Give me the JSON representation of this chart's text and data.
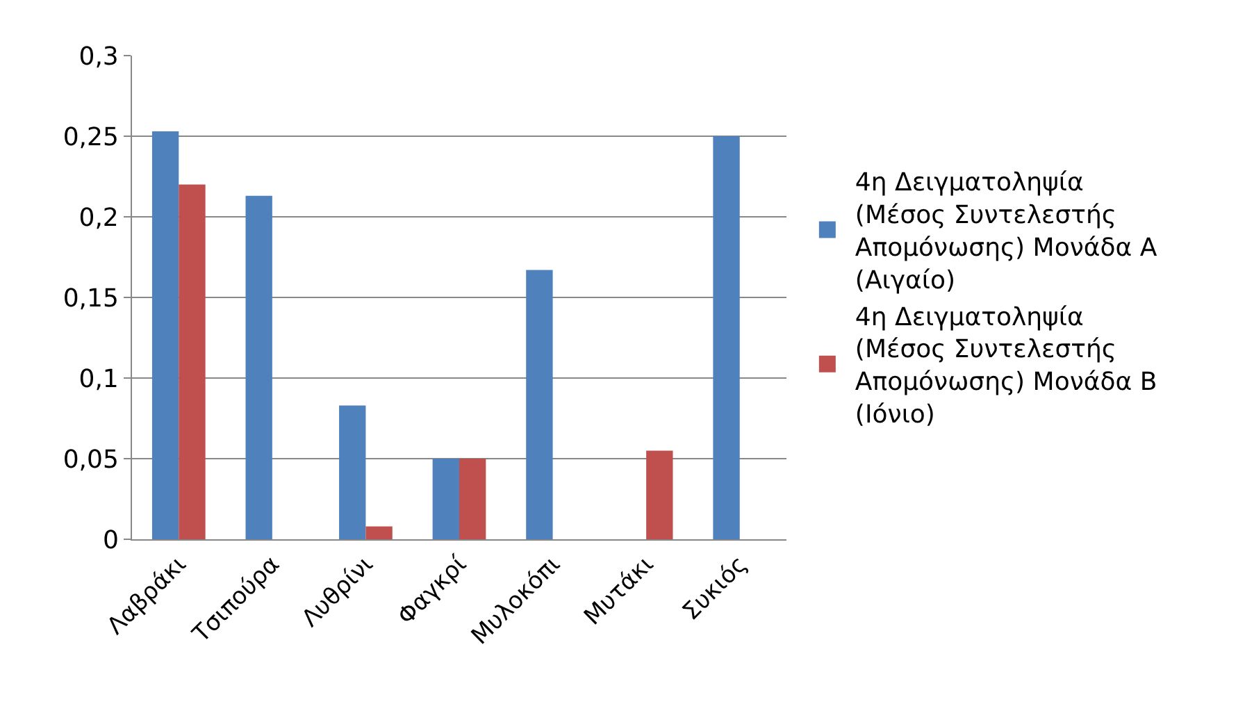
{
  "chart_data": {
    "type": "bar",
    "categories": [
      "Λαβράκι",
      "Τσιπούρα",
      "Λυθρίνι",
      "Φαγκρί",
      "Μυλοκόπι",
      "Μυτάκι",
      "Συκιός"
    ],
    "series": [
      {
        "name": "4η Δειγματοληψία (Μέσος Συντελεστής Απομόνωσης) Μονάδα Α (Αιγαίο)",
        "color": "#4f81bd",
        "values": [
          0.253,
          0.213,
          0.083,
          0.05,
          0.167,
          0,
          0.25
        ]
      },
      {
        "name": "4η Δειγματοληψία (Μέσος Συντελεστής Απομόνωσης) Μονάδα Β (Ιόνιο)",
        "color": "#c0504d",
        "values": [
          0.22,
          0,
          0.008,
          0.05,
          0,
          0.055,
          0
        ]
      }
    ],
    "ylim": [
      0,
      0.3
    ],
    "yticks": [
      {
        "value": 0,
        "label": "0"
      },
      {
        "value": 0.05,
        "label": "0,05"
      },
      {
        "value": 0.1,
        "label": "0,1"
      },
      {
        "value": 0.15,
        "label": "0,15"
      },
      {
        "value": 0.2,
        "label": "0,2"
      },
      {
        "value": 0.25,
        "label": "0,25"
      },
      {
        "value": 0.3,
        "label": "0,3"
      }
    ],
    "grid": "y",
    "legend": "right"
  }
}
